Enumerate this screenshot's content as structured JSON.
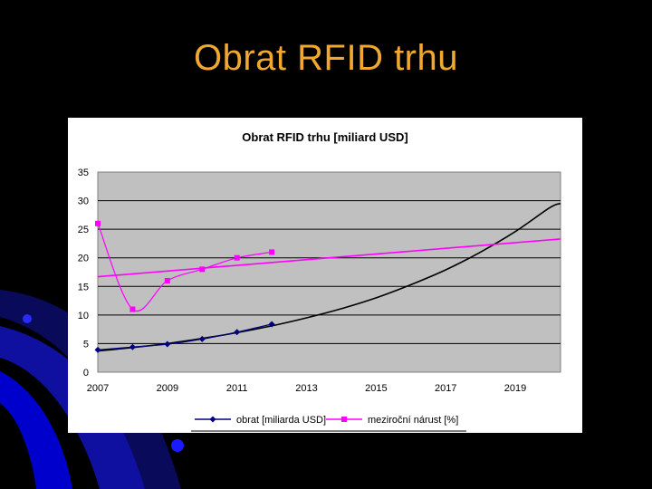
{
  "slide": {
    "title": "Obrat RFID trhu"
  },
  "colors": {
    "background": "#000000",
    "title": "#f0a830",
    "plot_area": "#c0c0c0"
  },
  "chart_data": {
    "type": "line",
    "title": "Obrat RFID trhu [miliard USD]",
    "xlabel": "",
    "ylabel": "",
    "xlim": [
      2007,
      2020.3
    ],
    "ylim": [
      0,
      35
    ],
    "x_ticks": [
      "2007",
      "2009",
      "2011",
      "2013",
      "2015",
      "2017",
      "2019"
    ],
    "y_ticks": [
      "0",
      "5",
      "10",
      "15",
      "20",
      "25",
      "30",
      "35"
    ],
    "grid": "horizontal",
    "legend_position": "bottom",
    "series": [
      {
        "name": "obrat [miliarda USD]",
        "color": "#000080",
        "marker": "diamond",
        "x": [
          2007,
          2008,
          2009,
          2010,
          2011,
          2012
        ],
        "y": [
          3.9,
          4.4,
          4.9,
          5.8,
          7.0,
          8.4
        ]
      },
      {
        "name": "meziroční nárust [%]",
        "color": "#ff00ff",
        "marker": "square",
        "x": [
          2007,
          2008,
          2009,
          2010,
          2011,
          2012
        ],
        "y": [
          26,
          11,
          16,
          18,
          20,
          21
        ]
      }
    ],
    "trendlines": [
      {
        "of": "obrat [miliarda USD]",
        "kind": "exponential",
        "color": "#000000",
        "x": [
          2007,
          2008,
          2009,
          2010,
          2011,
          2012,
          2013,
          2014,
          2015,
          2016,
          2017,
          2018,
          2019,
          2020,
          2020.3
        ],
        "y": [
          3.7,
          4.3,
          5.0,
          5.9,
          6.9,
          8.1,
          9.5,
          11.1,
          13.0,
          15.3,
          17.9,
          21.0,
          24.6,
          28.8,
          29.5
        ]
      },
      {
        "of": "meziroční nárust [%]",
        "kind": "linear",
        "color": "#ff00ff",
        "x": [
          2007,
          2020.3
        ],
        "y": [
          16.7,
          23.3
        ]
      }
    ]
  }
}
